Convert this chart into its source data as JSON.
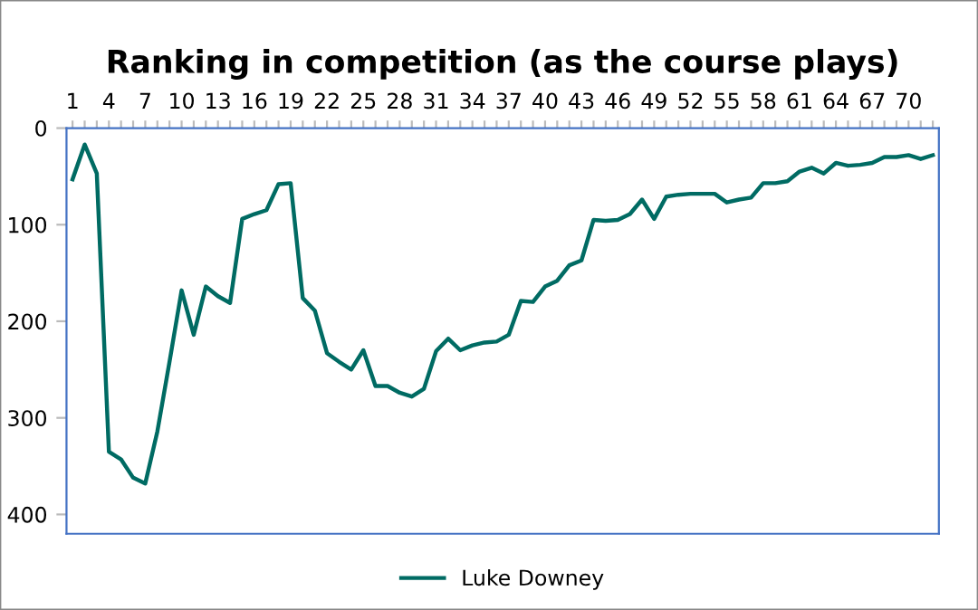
{
  "chart_data": {
    "type": "line",
    "title": "Ranking in competition (as the course plays)",
    "categories": [
      "1",
      null,
      null,
      "4",
      null,
      null,
      "7",
      null,
      null,
      "10",
      null,
      null,
      "13",
      null,
      null,
      "16",
      null,
      null,
      "19",
      null,
      null,
      "22",
      null,
      null,
      "25",
      null,
      null,
      "28",
      null,
      null,
      "31",
      null,
      null,
      "34",
      null,
      null,
      "37",
      null,
      null,
      "40",
      null,
      null,
      "43",
      null,
      null,
      "46",
      null,
      null,
      "49",
      null,
      null,
      "52",
      null,
      null,
      "55",
      null,
      null,
      "58",
      null,
      null,
      "61",
      null,
      null,
      "64",
      null,
      null,
      "67",
      null,
      null,
      "70",
      null,
      null
    ],
    "series": [
      {
        "name": "Luke Downey",
        "color": "#006b63",
        "values": [
          53,
          17,
          47,
          335,
          343,
          362,
          368,
          314,
          242,
          168,
          214,
          164,
          174,
          181,
          94,
          89,
          85,
          58,
          57,
          176,
          189,
          233,
          242,
          250,
          230,
          267,
          267,
          274,
          278,
          270,
          231,
          218,
          230,
          225,
          222,
          221,
          214,
          179,
          180,
          164,
          158,
          142,
          137,
          95,
          96,
          95,
          89,
          74,
          94,
          71,
          69,
          68,
          68,
          68,
          77,
          74,
          72,
          57,
          57,
          55,
          45,
          41,
          47,
          36,
          39,
          38,
          36,
          30,
          30,
          28,
          32,
          28
        ]
      }
    ],
    "ylim": [
      420,
      0
    ],
    "yticks": [
      0,
      100,
      200,
      300,
      400
    ],
    "grid": false,
    "legend": "bottom",
    "marker": "none",
    "line_style": "solid"
  }
}
